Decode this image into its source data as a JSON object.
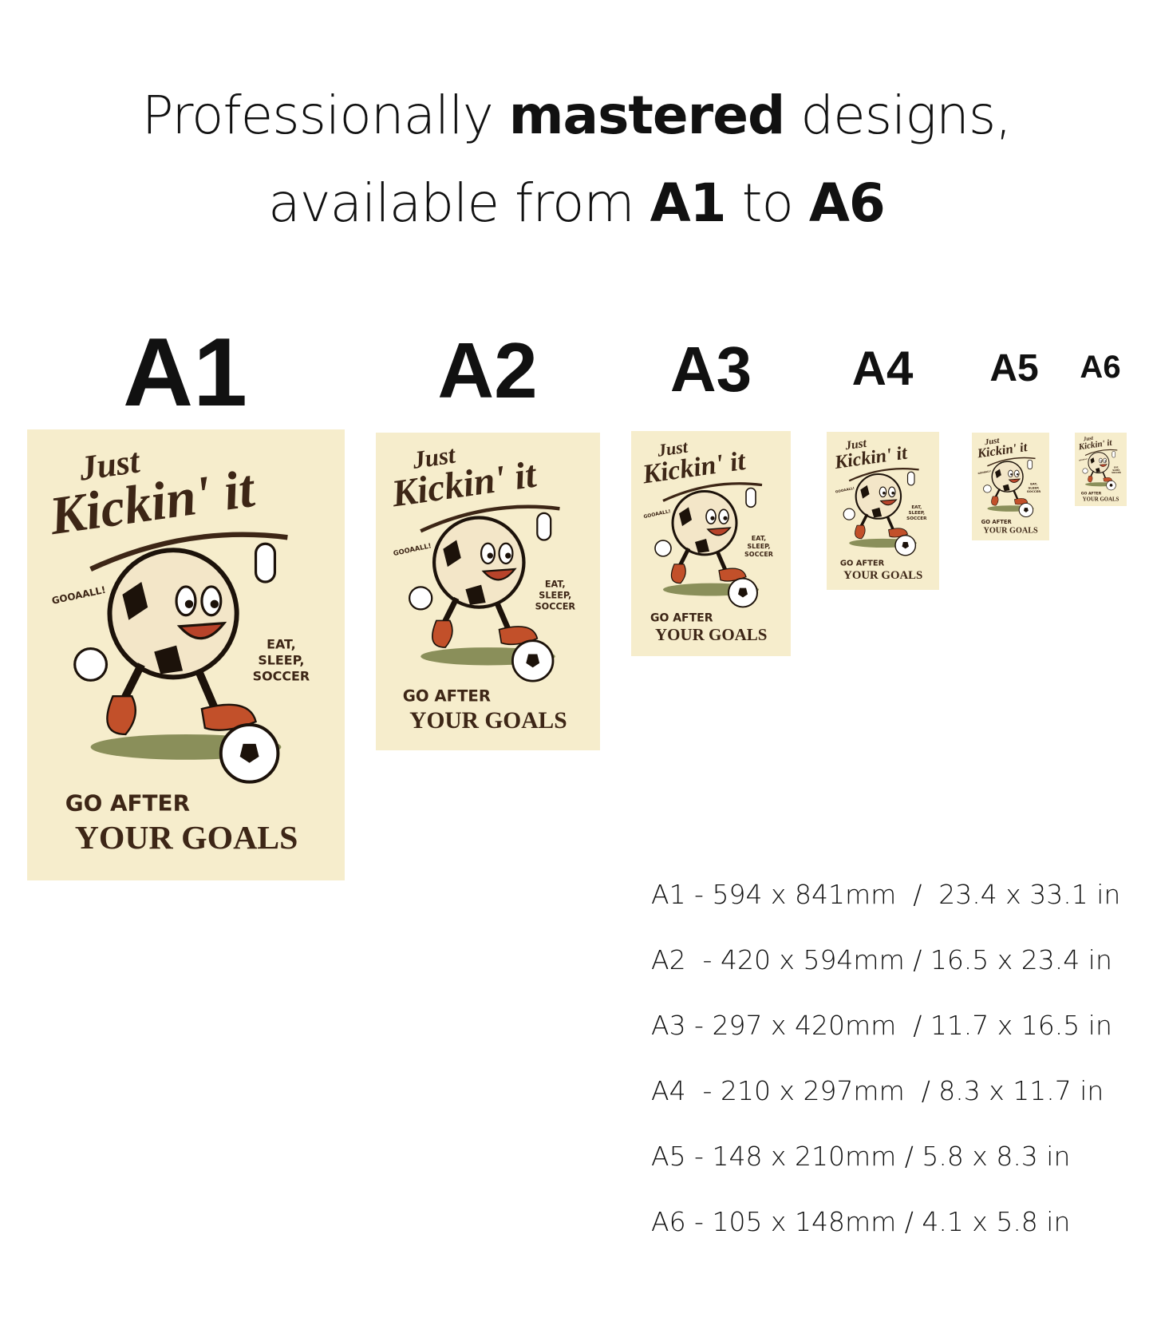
{
  "headline": {
    "line1_pre": "Professionally ",
    "line1_bold": "mastered",
    "line1_post": " designs,",
    "line2_pre": "available from ",
    "line2_bold1": "A1",
    "line2_mid": " to ",
    "line2_bold2": "A6"
  },
  "sizes": [
    {
      "label": "A1",
      "dims": "A1 - 594 x 841mm  /  23.4 x 33.1 in"
    },
    {
      "label": "A2",
      "dims": "A2  - 420 x 594mm / 16.5 x 23.4 in"
    },
    {
      "label": "A3",
      "dims": "A3 - 297 x 420mm  / 11.7 x 16.5 in"
    },
    {
      "label": "A4",
      "dims": "A4  - 210 x 297mm  / 8.3 x 11.7 in"
    },
    {
      "label": "A5",
      "dims": "A5 - 148 x 210mm / 5.8 x 8.3 in"
    },
    {
      "label": "A6",
      "dims": "A6 - 105 x 148mm / 4.1 x 5.8 in"
    }
  ],
  "poster": {
    "title_top": "Just",
    "title_main": "Kickin' it",
    "shout": "GOOAALL!",
    "side_1": "EAT,",
    "side_2": "SLEEP,",
    "side_3": "SOCCER",
    "footer_1": "GO AFTER",
    "footer_2": "YOUR GOALS"
  },
  "colors": {
    "poster_bg": "#f6edcc",
    "ink_brown": "#3d2616",
    "shoe_orange": "#c2502a",
    "ground_green": "#8a8f5a"
  }
}
